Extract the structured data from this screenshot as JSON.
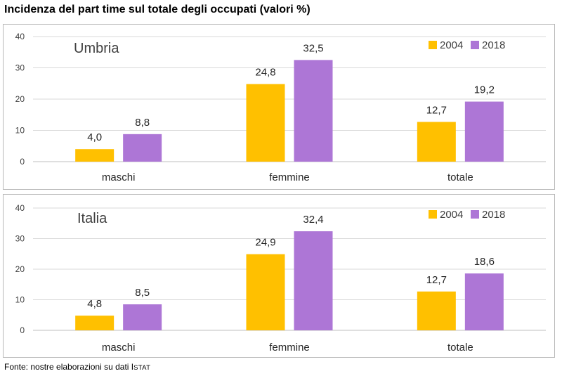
{
  "title": "Incidenza del part time sul totale degli occupati (valori %)",
  "source": {
    "prefix": "Fonte: nostre elaborazioni su dati ",
    "istat_initial": "I",
    "istat_rest": "STAT"
  },
  "colors": {
    "2004": "#ffc000",
    "2018": "#ad76d6",
    "grid": "#d9d9d9",
    "axis": "#bfbfbf"
  },
  "chart_data": [
    {
      "type": "bar",
      "region_label": "Umbria",
      "categories": [
        "maschi",
        "femmine",
        "totale"
      ],
      "series": [
        {
          "name": "2004",
          "values": [
            4.0,
            24.8,
            12.7
          ],
          "labels": [
            "4,0",
            "24,8",
            "12,7"
          ]
        },
        {
          "name": "2018",
          "values": [
            8.8,
            32.5,
            19.2
          ],
          "labels": [
            "8,8",
            "32,5",
            "19,2"
          ]
        }
      ],
      "ylim": [
        0,
        40
      ],
      "yticks": [
        0,
        10,
        20,
        30,
        40
      ],
      "grid": true,
      "legend": "top-right"
    },
    {
      "type": "bar",
      "region_label": "Italia",
      "categories": [
        "maschi",
        "femmine",
        "totale"
      ],
      "series": [
        {
          "name": "2004",
          "values": [
            4.8,
            24.9,
            12.7
          ],
          "labels": [
            "4,8",
            "24,9",
            "12,7"
          ]
        },
        {
          "name": "2018",
          "values": [
            8.5,
            32.4,
            18.6
          ],
          "labels": [
            "8,5",
            "32,4",
            "18,6"
          ]
        }
      ],
      "ylim": [
        0,
        40
      ],
      "yticks": [
        0,
        10,
        20,
        30,
        40
      ],
      "grid": true,
      "legend": "top-right"
    }
  ]
}
